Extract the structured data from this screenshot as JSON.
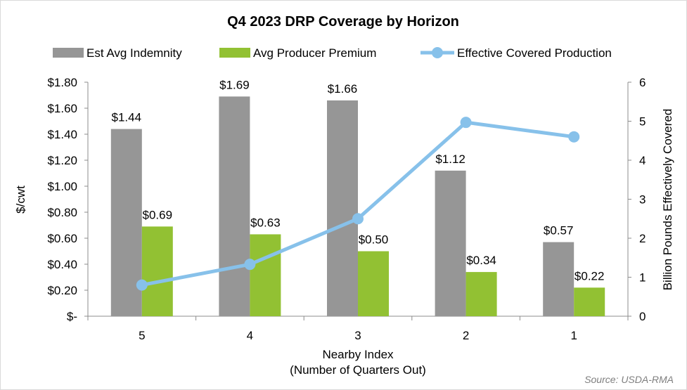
{
  "chart_data": {
    "type": "bar",
    "title": "Q4 2023 DRP Coverage by Horizon",
    "xlabel_line1": "Nearby Index",
    "xlabel_line2": "(Number  of Quarters Out)",
    "ylabel": "$/cwt",
    "y2label": "Billion Pounds Effectively Covered",
    "source": "Source: USDA-RMA",
    "categories": [
      "5",
      "4",
      "3",
      "2",
      "1"
    ],
    "ylim": [
      0,
      1.8
    ],
    "y_ticks": [
      "$-",
      "$0.20",
      "$0.40",
      "$0.60",
      "$0.80",
      "$1.00",
      "$1.20",
      "$1.40",
      "$1.60",
      "$1.80"
    ],
    "y_tick_values": [
      0,
      0.2,
      0.4,
      0.6,
      0.8,
      1.0,
      1.2,
      1.4,
      1.6,
      1.8
    ],
    "y2lim": [
      0,
      6
    ],
    "y2_ticks": [
      "0",
      "1",
      "2",
      "3",
      "4",
      "5",
      "6"
    ],
    "y2_tick_values": [
      0,
      1,
      2,
      3,
      4,
      5,
      6
    ],
    "series": [
      {
        "name": "Est Avg Indemnity",
        "kind": "bar",
        "axis": "left",
        "color": "#969696",
        "values": [
          1.44,
          1.69,
          1.66,
          1.12,
          0.57
        ],
        "labels": [
          "$1.44",
          "$1.69",
          "$1.66",
          "$1.12",
          "$0.57"
        ]
      },
      {
        "name": "Avg Producer Premium",
        "kind": "bar",
        "axis": "left",
        "color": "#92c133",
        "values": [
          0.69,
          0.63,
          0.5,
          0.34,
          0.22
        ],
        "labels": [
          "$0.69",
          "$0.63",
          "$0.50",
          "$0.34",
          "$0.22"
        ]
      },
      {
        "name": "Effective Covered Production",
        "kind": "line",
        "axis": "right",
        "color": "#87c1ea",
        "values": [
          0.8,
          1.33,
          2.5,
          4.97,
          4.6
        ]
      }
    ],
    "grid": false,
    "legend_position": "top"
  }
}
